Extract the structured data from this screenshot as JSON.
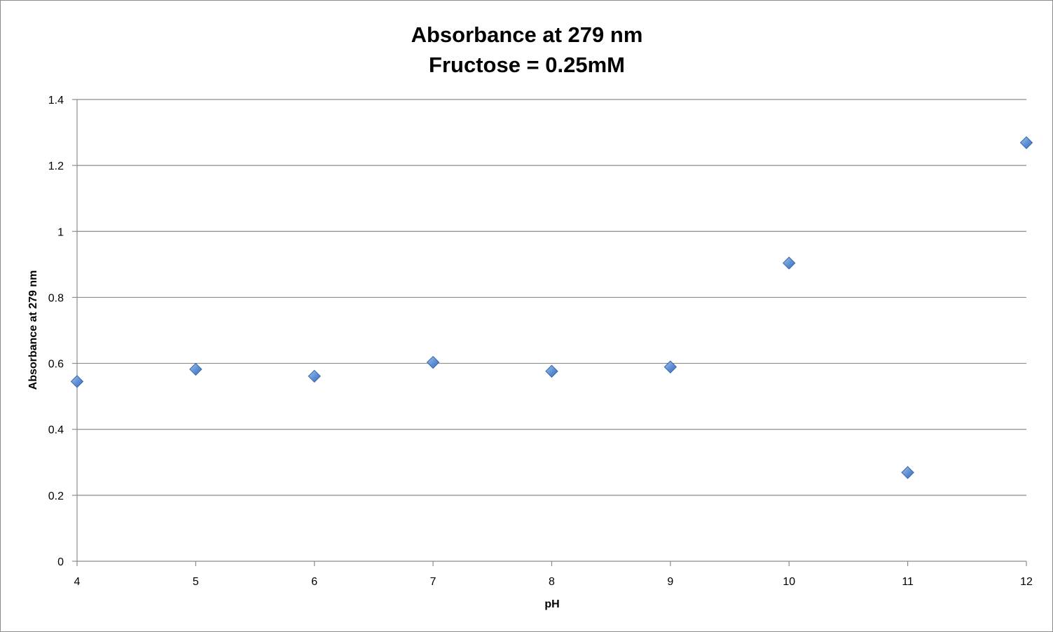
{
  "chart_data": {
    "type": "scatter",
    "title": "Absorbance at 279 nm",
    "subtitle": "Fructose = 0.25mM",
    "xlabel": "pH",
    "ylabel": "Absorbance at 279 nm",
    "xlim": [
      4,
      12
    ],
    "ylim": [
      0,
      1.4
    ],
    "xticks": [
      4,
      5,
      6,
      7,
      8,
      9,
      10,
      11,
      12
    ],
    "yticks": [
      0,
      0.2,
      0.4,
      0.6,
      0.8,
      1,
      1.2,
      1.4
    ],
    "ytick_labels": [
      "0",
      "0.2",
      "0.4",
      "0.6",
      "0.8",
      "1",
      "1.2",
      "1.4"
    ],
    "grid": "horizontal",
    "legend": "none",
    "marker": "diamond",
    "marker_color": "#4f81bd",
    "series": [
      {
        "x": [
          4,
          5,
          6,
          7,
          8,
          9,
          10,
          11,
          12
        ],
        "y": [
          0.545,
          0.582,
          0.561,
          0.603,
          0.576,
          0.589,
          0.904,
          0.269,
          1.269
        ]
      }
    ]
  }
}
